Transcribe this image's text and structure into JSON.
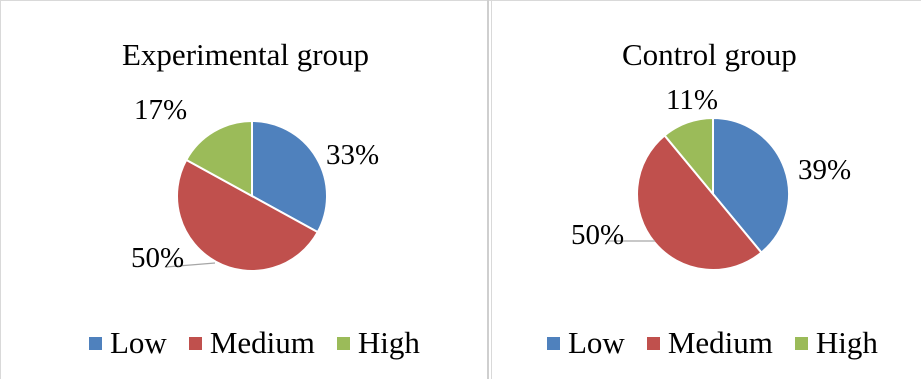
{
  "chart_data": [
    {
      "type": "pie",
      "title": "Experimental group",
      "categories": [
        "Low",
        "Medium",
        "High"
      ],
      "values": [
        33,
        50,
        17
      ],
      "labels": [
        "33%",
        "50%",
        "17%"
      ],
      "colors": [
        "#4f81bd",
        "#c0504d",
        "#9bbb59"
      ],
      "legend": "bottom"
    },
    {
      "type": "pie",
      "title": "Control group",
      "categories": [
        "Low",
        "Medium",
        "High"
      ],
      "values": [
        39,
        50,
        11
      ],
      "labels": [
        "39%",
        "50%",
        "11%"
      ],
      "colors": [
        "#4f81bd",
        "#c0504d",
        "#9bbb59"
      ],
      "legend": "bottom"
    }
  ]
}
